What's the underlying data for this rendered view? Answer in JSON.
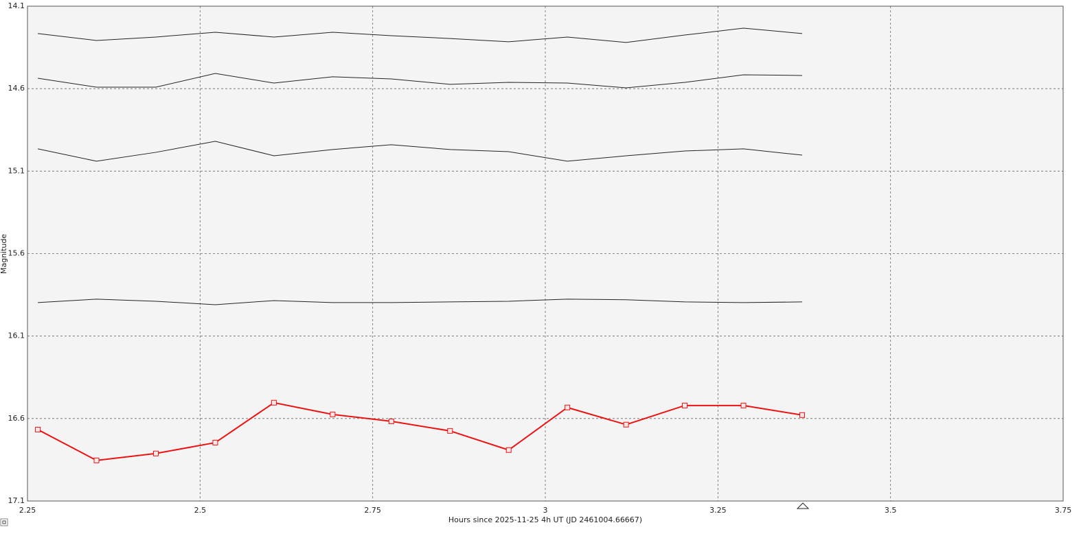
{
  "chart_data": {
    "type": "line",
    "x_label": "Hours since 2025-11-25 4h UT (JD 2461004.66667)",
    "y_label": "Magnitude",
    "xlim": [
      2.25,
      3.75
    ],
    "xticks": [
      2.25,
      2.5,
      2.75,
      3,
      3.25,
      3.5,
      3.75
    ],
    "ylim": [
      14.1,
      17.1
    ],
    "yticks": [
      14.1,
      14.6,
      15.1,
      15.6,
      16.1,
      16.6,
      17.1
    ],
    "invert_y": true,
    "grid": true,
    "x": [
      2.265,
      2.35,
      2.436,
      2.522,
      2.607,
      2.692,
      2.777,
      2.862,
      2.947,
      3.032,
      3.117,
      3.202,
      3.287,
      3.372
    ],
    "series": [
      {
        "color": "#222222",
        "markers": false,
        "values": [
          14.266,
          14.308,
          14.287,
          14.258,
          14.287,
          14.258,
          14.279,
          14.296,
          14.316,
          14.287,
          14.32,
          14.275,
          14.233,
          14.266
        ]
      },
      {
        "color": "#222222",
        "markers": false,
        "values": [
          14.537,
          14.591,
          14.591,
          14.508,
          14.566,
          14.528,
          14.541,
          14.574,
          14.562,
          14.566,
          14.595,
          14.562,
          14.516,
          14.52
        ]
      },
      {
        "color": "#222222",
        "markers": false,
        "values": [
          14.965,
          15.04,
          14.986,
          14.919,
          15.007,
          14.969,
          14.94,
          14.969,
          14.982,
          15.04,
          15.007,
          14.978,
          14.965,
          15.003
        ]
      },
      {
        "color": "#222222",
        "markers": false,
        "values": [
          15.897,
          15.876,
          15.889,
          15.91,
          15.885,
          15.897,
          15.897,
          15.893,
          15.889,
          15.876,
          15.88,
          15.893,
          15.897,
          15.893
        ]
      },
      {
        "color": "#ee1111",
        "markers": true,
        "values": [
          16.667,
          16.854,
          16.812,
          16.746,
          16.504,
          16.575,
          16.617,
          16.675,
          16.791,
          16.533,
          16.637,
          16.521,
          16.521,
          16.579
        ]
      }
    ]
  }
}
